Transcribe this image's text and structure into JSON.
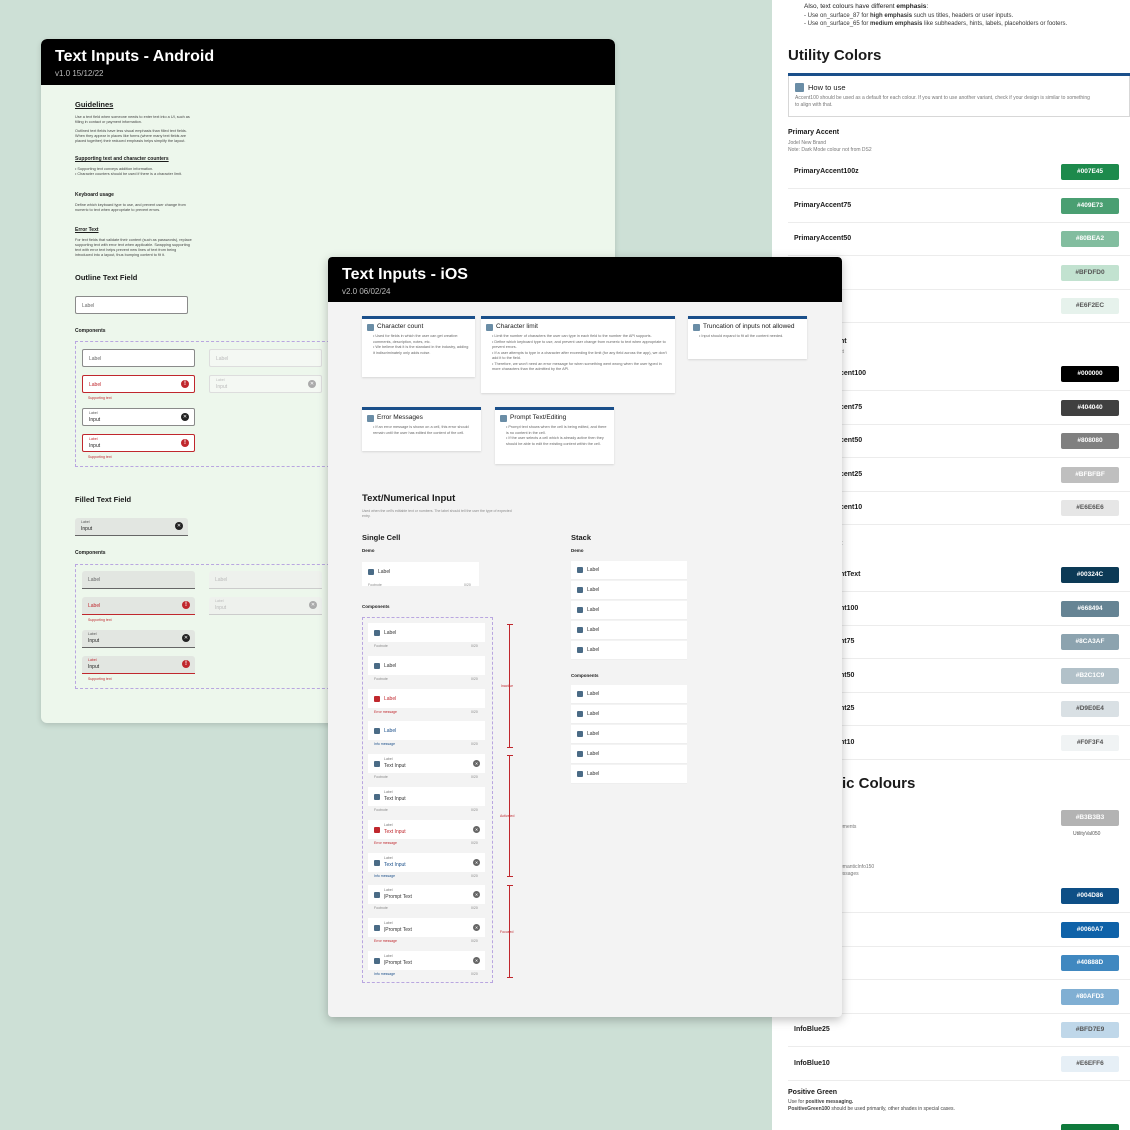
{
  "utility": {
    "intro_line1_pre": "Also, text colours have different",
    "intro_line1_bold": "emphasis",
    "intro_line1_post": ":",
    "intro_line2_pre": "- Use on_surface_87 for",
    "intro_line2_bold": "high emphasis",
    "intro_line2_post": "such us titles, headers or user inputs.",
    "intro_line3_pre": "- Use on_surface_65 for",
    "intro_line3_bold": "medium emphasis",
    "intro_line3_post": "like subheaders, hints, labels, placeholders or footers.",
    "title": "Utility Colors",
    "how_to_use_title": "How to use",
    "how_to_use_desc_line1": "Accent100 should be used as a default for each colour. If you want to use another variant, check if your design is similar to something",
    "how_to_use_desc_line2": "to align with that.",
    "primary_accent_title": "Primary Accent",
    "primary_accent_sub1": "Jodel New Brand",
    "primary_accent_sub2": "Note: Dark Mode colour not from DS2",
    "rows": [
      {
        "name": "PrimaryAccent100z",
        "hex": "#007E45",
        "bg": "#1d8a4c",
        "fg": "#ffffff"
      },
      {
        "name": "PrimaryAccent75",
        "hex": "#409E73",
        "bg": "#4a9f72",
        "fg": "#ffffff"
      },
      {
        "name": "PrimaryAccent50",
        "hex": "#80BEA2",
        "bg": "#82bd9f",
        "fg": "#ffffff"
      },
      {
        "name": "nt25",
        "hex": "#BFDFD0",
        "bg": "#c2e2d0",
        "fg": "#555555"
      },
      {
        "name": "nt10",
        "hex": "#E6F2EC",
        "bg": "#e6f2ec",
        "fg": "#555555"
      }
    ],
    "dark_title_frag": "nt",
    "dark_sub_frag": "ct",
    "rows2": [
      {
        "name": "cent100",
        "hex": "#000000",
        "bg": "#000000",
        "fg": "#ffffff"
      },
      {
        "name": "cent75",
        "hex": "#404040",
        "bg": "#404040",
        "fg": "#ffffff"
      },
      {
        "name": "cent50",
        "hex": "#808080",
        "bg": "#808080",
        "fg": "#ffffff"
      },
      {
        "name": "cent25",
        "hex": "#BFBFBF",
        "bg": "#bfbfbf",
        "fg": "#ffffff"
      },
      {
        "name": "cent10",
        "hex": "#E6E6E6",
        "bg": "#e6e6e6",
        "fg": "#555555"
      }
    ],
    "text_title_frag": "t",
    "rows3": [
      {
        "name": "ntText",
        "hex": "#00324C",
        "bg": "#0c3a56",
        "fg": "#ffffff"
      },
      {
        "name": "nt100",
        "hex": "#668494",
        "bg": "#668494",
        "fg": "#ffffff"
      },
      {
        "name": "nt75",
        "hex": "#8CA3AF",
        "bg": "#8ca3af",
        "fg": "#ffffff"
      },
      {
        "name": "nt50",
        "hex": "#B2C1C9",
        "bg": "#b2c1c9",
        "fg": "#ffffff"
      },
      {
        "name": "nt25",
        "hex": "#D9E0E4",
        "bg": "#d9e0e4",
        "fg": "#555555"
      },
      {
        "name": "nt10",
        "hex": "#F0F3F4",
        "bg": "#f0f3f4",
        "fg": "#555555"
      }
    ],
    "semantic_title_frag": "ic Colours",
    "semantic_row_sub": "ements",
    "semantic_swatch": {
      "hex": "#B3B3B3",
      "bg": "#b3b3b3",
      "fg": "#ffffff"
    },
    "semantic_swatch_caption": "UtilityVal050",
    "info_sub1": "emanticInfo150",
    "info_sub2": "essages",
    "rows4": [
      {
        "name": "",
        "hex": "#004D86",
        "bg": "#0e4f86",
        "fg": "#ffffff"
      },
      {
        "name": "",
        "hex": "#0060A7",
        "bg": "#0f62a8",
        "fg": "#ffffff"
      },
      {
        "name": "",
        "hex": "#40888D",
        "bg": "#4088c0",
        "fg": "#ffffff"
      },
      {
        "name": "",
        "hex": "#80AFD3",
        "bg": "#80afd3",
        "fg": "#ffffff"
      },
      {
        "name": "InfoBlue25",
        "hex": "#BFD7E9",
        "bg": "#bfd7e9",
        "fg": "#555555"
      },
      {
        "name": "InfoBlue10",
        "hex": "#E6EFF6",
        "bg": "#e6eff6",
        "fg": "#555555"
      }
    ],
    "positive_title": "Positive Green",
    "positive_sub1_pre": "Use for",
    "positive_sub1_bold": "positive messaging.",
    "positive_sub2_bold": "PositiveGreen100",
    "positive_sub2_post": "should be used primarily, other shades in special cases."
  },
  "android": {
    "title": "Text Inputs - Android",
    "version": "v1.0 15/12/22",
    "guidelines_title": "Guidelines",
    "guidelines_p1": "Use a text field when someone needs to enter text into a UI, such as filling in contact or payment information.",
    "guidelines_p2": "Outlined text fields have less visual emphasis than filled text fields. When they appear in places like forms (where many text fields are placed together) their reduced emphasis helps simplify the layout.",
    "supporting_title": "Supporting text and character counters",
    "supporting_p": "• Supporting text conveys addition information.\n• Character counters should be used if there is a character limit.",
    "keyboard_title": "Keyboard usage",
    "keyboard_p": "Define which keyboard type to use, and prevent user change from numeric to text when appropriate to prevent errors.",
    "error_title": "Error Text",
    "error_p": "For text fields that validate their content (such as passwords), replace supporting text with error text when applicable. Swapping supporting text with error text helps prevent new lines of text from being introduced into a layout, thus bumping content to fit it.",
    "outline_title": "Outline Text Field",
    "field_label": "Label",
    "components": "Components",
    "input": "Input",
    "supporting_text": "Supporting text",
    "filled_title": "Filled Text Field"
  },
  "ios": {
    "title": "Text Inputs - iOS",
    "version": "v2.0 06/02/24",
    "notes": [
      {
        "title": "Character count",
        "desc": "• Used for fields in which the user can get creative: comments, description, notes, etc.\n• We believe that it is the standard in the industry, adding it indiscriminately only adds noise."
      },
      {
        "title": "Character limit",
        "desc": "• Limit the number of characters the user can type in each field to the number the API supports.\n• Define which keyboard type to use, and prevent user change from numeric to text when appropriate to prevent errors.\n• If a user attempts to type in a character after exceeding the limit (for any field across the app), we don't add it to the field.\n• Therefore, we won't need an error message for when something went wrong when the user typed in more characters than the admitted by the API."
      },
      {
        "title": "Truncation of inputs not allowed",
        "desc": "• Input should expand to fit all the content needed."
      },
      {
        "title": "Error Messages",
        "desc": "• If an error message is shown on a cell, this error should remain until the user has edited the content of the cell."
      },
      {
        "title": "Prompt Text/Editing",
        "desc": "• Prompt text shows when the cell is being edited, and there is no content in the cell.\n• If the user selects a cell which is already active then they should be able to edit the existing content within the cell."
      }
    ],
    "section_title": "Text/Numerical Input",
    "section_desc": "Used when the cell's editable text or numbers. The label should tell the user the type of expected entry.",
    "single_cell": "Single Cell",
    "stack": "Stack",
    "demo": "Demo",
    "components": "Components",
    "label": "Label",
    "footnote": "Footnote",
    "counter": "0/20",
    "error_message": "Error message",
    "info_message": "Info message",
    "text_input": "Text Input",
    "prompt_text": "|Prompt Text",
    "inactive": "Inactive",
    "activated": "Activated",
    "focused": "Focused"
  }
}
